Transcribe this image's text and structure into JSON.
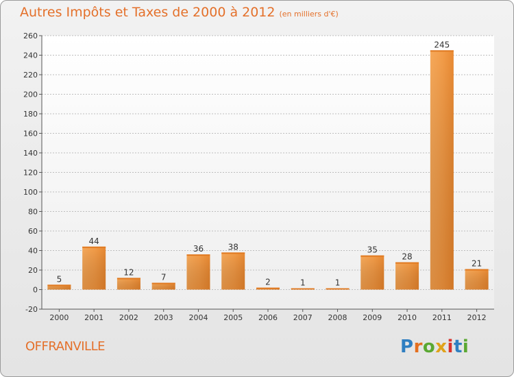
{
  "header": {
    "title": "Autres Impôts et Taxes de 2000 à 2012",
    "unit": "(en milliers d'€)"
  },
  "commune": "OFFRANVILLE",
  "logo": {
    "text": "Proxiti",
    "letters": [
      "P",
      "r",
      "o",
      "x",
      "i",
      "t",
      "i"
    ],
    "colors": [
      "#2f7fc1",
      "#e46f1f",
      "#5aa832",
      "#e0a21a",
      "#d8322c",
      "#2f7fc1",
      "#5aa832"
    ]
  },
  "colors": {
    "accent": "#e4702a",
    "bar_light": "#f6a95a",
    "bar_dark": "#d5741f"
  },
  "chart_data": {
    "type": "bar",
    "categories": [
      "2000",
      "2001",
      "2002",
      "2003",
      "2004",
      "2005",
      "2006",
      "2007",
      "2008",
      "2009",
      "2010",
      "2011",
      "2012"
    ],
    "values": [
      5,
      44,
      12,
      7,
      36,
      38,
      2,
      1,
      1,
      35,
      28,
      245,
      21
    ],
    "data_labels": [
      "5",
      "44",
      "12",
      "7",
      "36",
      "38",
      "2",
      "1",
      "1",
      "35",
      "28",
      "245",
      "21"
    ],
    "ylim": [
      -20,
      260
    ],
    "yticks": [
      -20,
      0,
      20,
      40,
      60,
      80,
      100,
      120,
      140,
      160,
      180,
      200,
      220,
      240,
      260
    ],
    "grid": true,
    "legend": "none"
  }
}
